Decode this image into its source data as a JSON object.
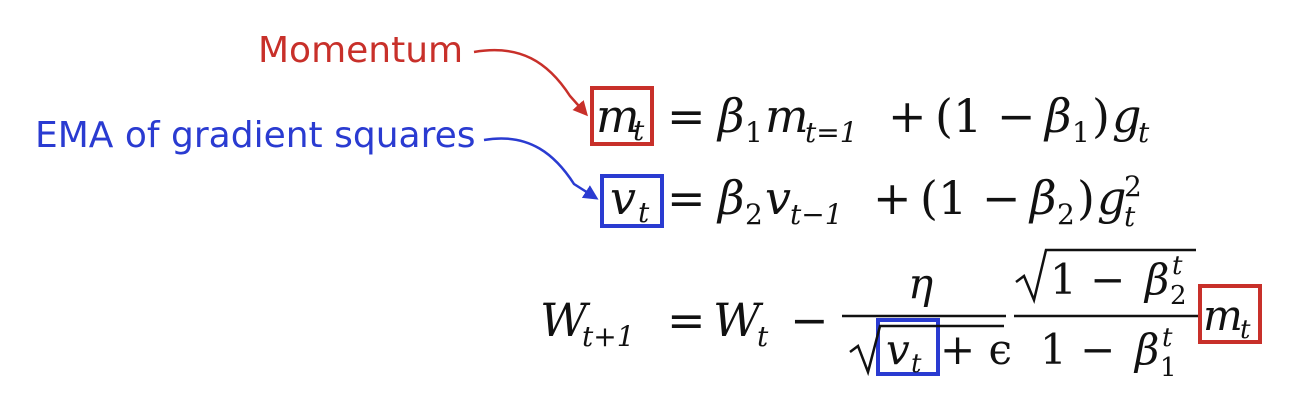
{
  "annotations": {
    "momentum_label": "Momentum",
    "ema_label": "EMA of gradient squares"
  },
  "colors": {
    "momentum": "#c8302a",
    "ema": "#2a3bd1",
    "text": "#111111",
    "background": "#ffffff"
  },
  "equations": {
    "eq1": {
      "lhs_var": "m",
      "lhs_sub": "t",
      "equals": "=",
      "beta": "β",
      "beta_sub": "1",
      "m_var": "m",
      "m_sub": "t=1",
      "plus": "+",
      "paren_open": "(1 −",
      "paren_close": ")",
      "g_var": "g",
      "g_sub": "t"
    },
    "eq2": {
      "lhs_var": "v",
      "lhs_sub": "t",
      "equals": "=",
      "beta": "β",
      "beta_sub": "2",
      "v_var": "v",
      "v_sub": "t−1",
      "plus": "+",
      "paren_open": "(1 −",
      "paren_close": ")",
      "g_var": "g",
      "g_sub": "t",
      "g_sup": "2"
    },
    "eq3": {
      "lhs_var": "W",
      "lhs_sub": "t+1",
      "equals": "=",
      "w_var": "W",
      "w_sub": "t",
      "minus": "−",
      "eta": "η",
      "v_var": "v",
      "v_sub": "t",
      "plus_eps": "+ ϵ",
      "one_minus": "1 −",
      "beta": "β",
      "beta2_sub": "2",
      "beta1_sub": "1",
      "beta_sup": "t",
      "m_var": "m",
      "m_sub": "t"
    }
  }
}
